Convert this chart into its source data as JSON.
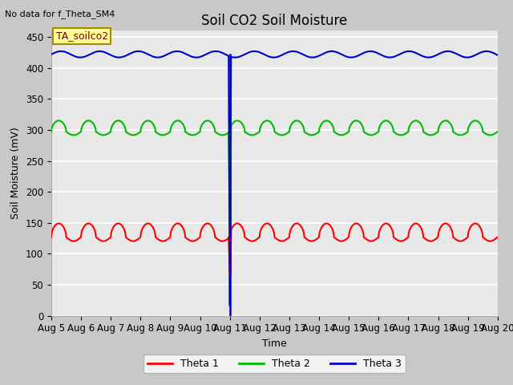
{
  "title": "Soil CO2 Soil Moisture",
  "no_data_label": "No data for f_Theta_SM4",
  "annotation_label": "TA_soilco2",
  "ylabel": "Soil Moisture (mV)",
  "xlabel": "Time",
  "ylim": [
    0,
    460
  ],
  "yticks": [
    0,
    50,
    100,
    150,
    200,
    250,
    300,
    350,
    400,
    450
  ],
  "x_tick_labels": [
    "Aug 5",
    "Aug 6",
    "Aug 7",
    "Aug 8",
    "Aug 9",
    "Aug 10",
    "Aug 11",
    "Aug 12",
    "Aug 13",
    "Aug 14",
    "Aug 15",
    "Aug 16",
    "Aug 17",
    "Aug 18",
    "Aug 19",
    "Aug 20"
  ],
  "theta1_base": 127,
  "theta1_amp": 22,
  "theta2_base": 297,
  "theta2_amp": 18,
  "theta3_base": 422,
  "theta3_amp": 5,
  "spike_day": 11.0,
  "theta1_spike_val": 68,
  "theta2_spike_val": 148,
  "color_theta1": "#ff0000",
  "color_theta2": "#00bb00",
  "color_theta3": "#0000cc",
  "plot_bg": "#e8e8e8",
  "grid_color": "#ffffff",
  "annotation_bg": "#ffff99",
  "annotation_border": "#aa8800",
  "line_width": 1.5,
  "title_fontsize": 12,
  "label_fontsize": 9,
  "tick_fontsize": 8.5
}
